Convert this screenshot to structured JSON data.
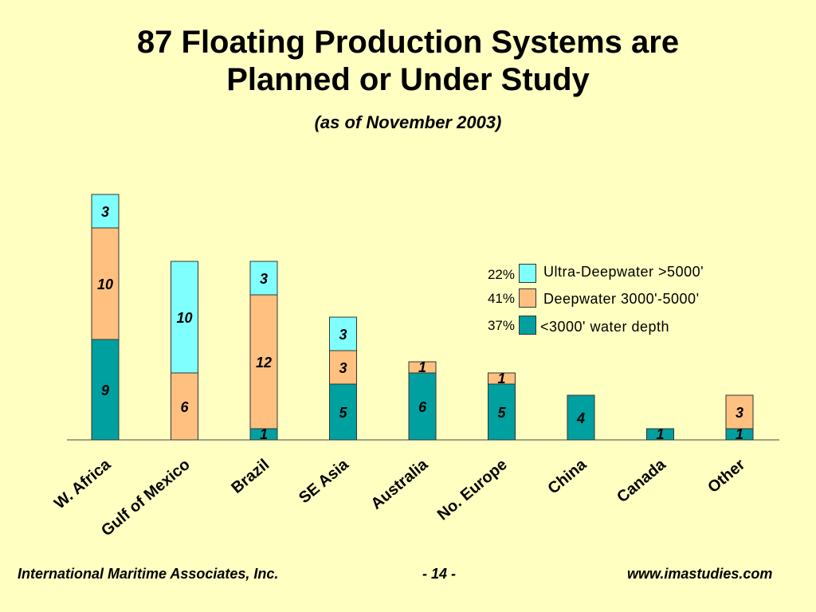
{
  "title_line1": "87 Floating Production Systems are",
  "title_line2": "Planned or Under Study",
  "subtitle": "(as of November 2003)",
  "legend": [
    {
      "pct": "22%",
      "label": "Ultra-Deepwater >5000'",
      "color": "#80ffff"
    },
    {
      "pct": "41%",
      "label": "Deepwater 3000'-5000'",
      "color": "#ffc080"
    },
    {
      "pct": "37%",
      "label": "<3000' water depth",
      "color": "#00a0a0"
    }
  ],
  "footer": {
    "left": "International Maritime Associates, Inc.",
    "center": "- 14 -",
    "right": "www.imastudies.com"
  },
  "chart_data": {
    "type": "bar",
    "stacked": true,
    "categories": [
      "W. Africa",
      "Gulf of Mexico",
      "Brazil",
      "SE Asia",
      "Australia",
      "No. Europe",
      "China",
      "Canada",
      "Other"
    ],
    "series": [
      {
        "name": "<3000' water depth",
        "color": "#00a0a0",
        "values": [
          9,
          0,
          1,
          5,
          6,
          5,
          4,
          1,
          1
        ]
      },
      {
        "name": "Deepwater 3000'-5000'",
        "color": "#ffc080",
        "values": [
          10,
          6,
          12,
          3,
          1,
          1,
          0,
          0,
          3
        ]
      },
      {
        "name": "Ultra-Deepwater >5000'",
        "color": "#80ffff",
        "values": [
          3,
          10,
          3,
          3,
          0,
          0,
          0,
          0,
          0
        ]
      }
    ],
    "ylim": [
      0,
      22
    ],
    "grid": false,
    "legend_position": "right"
  }
}
